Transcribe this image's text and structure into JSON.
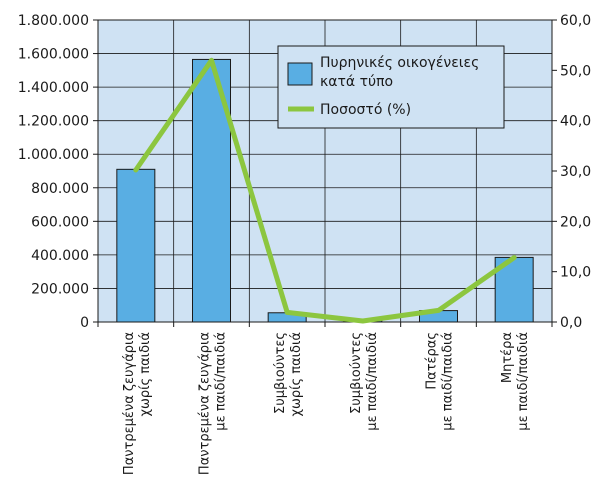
{
  "chart_data": {
    "type": "bar",
    "title": "",
    "categories": [
      [
        "Παντρεμένα ζευγάρια",
        "χωρίς παιδιά"
      ],
      [
        "Παντρεμένα ζευγάρια",
        "με παιδί/παιδιά"
      ],
      [
        "Συμβιούντες",
        "χωρίς παιδιά"
      ],
      [
        "Συμβιούντες",
        "με παιδί/παιδιά"
      ],
      [
        "Πατέρας",
        "με παιδί/παιδιά"
      ],
      [
        "Μητέρα",
        "με παιδί/παιδιά"
      ]
    ],
    "series": [
      {
        "name": "Πυρηνικές οικογένειες κατά τύπο",
        "type": "bar",
        "axis": "left",
        "values": [
          910000,
          1565000,
          55000,
          8000,
          68000,
          385000
        ]
      },
      {
        "name": "Ποσοστό (%)",
        "type": "line",
        "axis": "right",
        "values": [
          30.2,
          52.0,
          1.9,
          0.2,
          2.3,
          12.8
        ]
      }
    ],
    "left_axis": {
      "ylim": [
        0,
        1800000
      ],
      "ticks": [
        0,
        200000,
        400000,
        600000,
        800000,
        1000000,
        1200000,
        1400000,
        1600000,
        1800000
      ],
      "tick_labels": [
        "0",
        "200.000",
        "400.000",
        "600.000",
        "800.000",
        "1.000.000",
        "1.200.000",
        "1.400.000",
        "1.600.000",
        "1.800.000"
      ]
    },
    "right_axis": {
      "ylim": [
        0,
        60
      ],
      "ticks": [
        0,
        10,
        20,
        30,
        40,
        50,
        60
      ],
      "tick_labels": [
        "0,0",
        "10,0",
        "20,0",
        "30,0",
        "40,0",
        "50,0",
        "60,0"
      ]
    },
    "legend": {
      "placement": "top-right",
      "bar_label_lines": [
        "Πυρηνικές οικογένειες",
        "κατά  τύπο"
      ],
      "line_label": "Ποσοστό (%)"
    },
    "grid": true,
    "colors": {
      "plot_background": "#cfe2f3",
      "bar_fill": "#59aee3",
      "bar_stroke": "#1a1a1a",
      "line": "#8cc63f",
      "grid": "#1a1a1a"
    }
  }
}
